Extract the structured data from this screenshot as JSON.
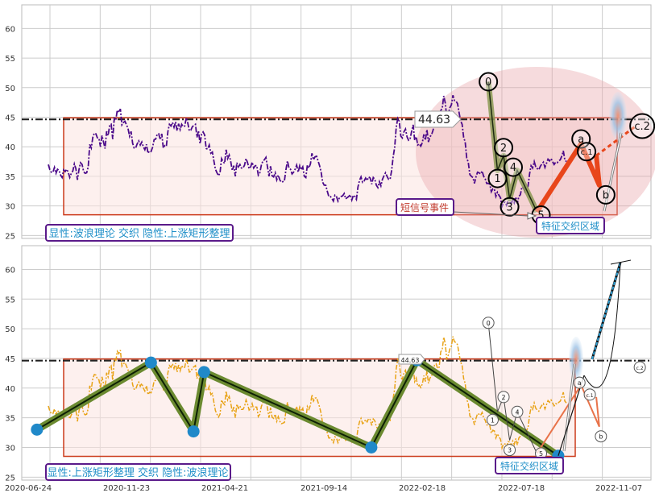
{
  "chart_data": [
    {
      "type": "line",
      "panel": "top",
      "ylim": [
        24.5,
        64
      ],
      "yticks": [
        "25",
        "30",
        "35",
        "40",
        "45",
        "50",
        "55",
        "60"
      ],
      "grid": true,
      "series": [
        {
          "values": [
            37.0,
            36.1,
            35.7,
            35.7,
            36.5,
            35.5,
            36.2,
            36.0,
            35.2,
            34.8,
            36.1,
            35.8,
            36.2,
            35.7,
            34.8,
            35.5,
            35.9,
            37.1,
            36.3,
            34.4,
            36.1,
            37.3,
            37.0,
            35.8,
            35.5,
            35.6,
            36.6,
            40.4,
            39.8,
            41.6,
            42.3,
            42.2,
            41.5,
            41.4,
            40.0,
            41.9,
            40.8,
            39.7,
            42.6,
            41.9,
            43.6,
            43.8,
            41.3,
            44.8,
            44.5,
            46.2,
            45.8,
            46.4,
            43.7,
            44.1,
            44.3,
            43.7,
            43.1,
            41.8,
            42.6,
            40.6,
            39.8,
            39.8,
            40.5,
            41.0,
            40.3,
            40.8,
            40.0,
            39.5,
            40.4,
            38.9,
            39.3,
            39.2,
            39.9,
            41.2,
            41.3,
            42.1,
            42.2,
            41.2,
            42.2,
            39.8,
            40.2,
            40.1,
            42.6,
            43.8,
            43.5,
            44.1,
            43.3,
            44.2,
            42.7,
            43.9,
            42.9,
            43.8,
            43.4,
            43.5,
            44.9,
            44.0,
            42.7,
            42.8,
            43.4,
            43.6,
            43.8,
            41.6,
            42.7,
            40.5,
            42.1,
            42.5,
            42.0,
            39.7,
            39.6,
            40.3,
            38.9,
            39.1,
            37.6,
            36.2,
            35.6,
            35.1,
            35.6,
            38.0,
            37.5,
            37.2,
            39.5,
            38.0,
            38.6,
            37.5,
            36.0,
            36.8,
            35.0,
            37.3,
            36.6,
            37.0,
            36.4,
            36.4,
            36.9,
            38.0,
            37.3,
            36.3,
            36.6,
            37.4,
            36.4,
            36.8,
            36.8,
            35.2,
            35.6,
            36.9,
            37.6,
            37.8,
            38.2,
            36.6,
            35.0,
            36.7,
            35.1,
            34.9,
            35.6,
            34.4,
            35.2,
            34.4,
            34.0,
            34.1,
            34.2,
            36.1,
            37.6,
            36.4,
            36.2,
            35.4,
            35.7,
            36.2,
            36.9,
            35.7,
            36.8,
            36.1,
            36.6,
            35.0,
            34.8,
            36.9,
            36.4,
            37.1,
            38.9,
            37.8,
            38.3,
            38.4,
            37.6,
            36.8,
            35.7,
            34.0,
            33.5,
            33.5,
            32.5,
            31.6,
            31.6,
            31.3,
            30.8,
            31.8,
            31.6,
            30.8,
            31.4,
            31.6,
            31.7,
            32.1,
            31.2,
            31.4,
            31.6,
            31.9,
            31.0,
            31.8,
            31.6,
            31.1,
            33.2,
            34.3,
            34.9,
            34.0,
            34.2,
            34.7,
            34.3,
            34.9,
            34.7,
            33.7,
            34.8,
            34.5,
            33.5,
            33.1,
            34.1,
            33.4,
            34.5,
            35.1,
            35.6,
            35.0,
            34.5,
            34.5,
            36.0,
            38.3,
            39.9,
            43.3,
            44.8,
            44.3,
            41.8,
            41.5,
            42.5,
            43.0,
            41.7,
            41.1,
            41.3,
            42.6,
            43.7,
            41.1,
            41.7,
            40.3,
            40.5,
            40.1,
            40.7,
            42.1,
            41.1,
            42.9,
            40.8,
            41.7,
            42.0,
            42.8,
            43.9,
            44.1,
            43.3,
            43.5,
            46.1,
            46.5,
            48.6,
            47.4,
            44.8,
            45.6,
            46.6,
            47.1,
            48.7,
            47.8,
            47.7,
            47.3,
            45.8,
            44.4,
            43.8,
            41.6,
            40.8,
            38.1,
            37.4,
            35.3,
            35.0,
            34.8,
            33.8,
            34.9,
            35.7,
            35.6,
            35.4,
            35.9,
            35.0,
            34.6,
            33.8,
            33.8,
            33.7,
            32.4,
            32.9,
            32.8,
            31.6,
            32.3,
            31.8,
            31.4,
            29.9,
            30.6,
            30.6,
            30.1,
            31.0,
            30.9,
            30.3,
            31.1,
            30.5,
            31.5,
            30.4,
            31.6,
            31.9,
            33.2,
            33.1,
            32.4,
            32.9,
            33.3,
            35.4,
            36.8,
            36.4,
            37.5,
            36.6,
            36.3,
            36.1,
            36.7,
            37.1,
            37.4,
            36.5,
            37.2,
            37.9,
            37.6,
            38.0,
            37.5,
            37.0,
            37.4,
            37.3,
            37.6,
            37.8,
            38.4,
            39.3,
            37.8,
            37.5
          ]
        }
      ],
      "support": 28.5,
      "resistance": 44.63,
      "price_label": "44.63",
      "wave_points": [
        {
          "label": "0",
          "x": 307.0,
          "y": 51.0
        },
        {
          "label": "1",
          "x": 313.0,
          "y": 36.0
        },
        {
          "label": "2",
          "x": 317.0,
          "y": 38.5
        },
        {
          "label": "3",
          "x": 321.0,
          "y": 31.2
        },
        {
          "label": "4",
          "x": 326.0,
          "y": 36.0
        },
        {
          "label": "5",
          "x": 339.0,
          "y": 29.0
        },
        {
          "label": "a",
          "x": 368.0,
          "y": 40.5
        },
        {
          "label": "c.1",
          "x": 378.0,
          "y": 38.5
        },
        {
          "label": "b",
          "x": 380.0,
          "y": 33.5
        },
        {
          "label": "c.2",
          "x": 404.0,
          "y": 43.5
        }
      ],
      "annotations": {
        "signal": "短信号事件",
        "zone": "特征交织区域",
        "legend": "显性:波浪理论 交织 隐性:上涨矩形整理"
      }
    },
    {
      "type": "line",
      "panel": "bottom",
      "ylim": [
        24.5,
        64
      ],
      "yticks": [
        "25",
        "30",
        "35",
        "40",
        "45",
        "50",
        "55",
        "60"
      ],
      "grid": true,
      "xticks": [
        "2020-06-24",
        "2020-11-23",
        "2021-04-21",
        "2021-09-14",
        "2022-02-18",
        "2022-07-18",
        "2022-11-07"
      ],
      "rect_pivots": [
        {
          "x": 10.0,
          "y": 33.0
        },
        {
          "x": 85.0,
          "y": 44.3
        },
        {
          "x": 113.0,
          "y": 32.7
        },
        {
          "x": 120.0,
          "y": 42.7
        },
        {
          "x": 230.0,
          "y": 30.0
        },
        {
          "x": 260.0,
          "y": 44.7
        },
        {
          "x": 353.0,
          "y": 28.6
        }
      ],
      "target": {
        "x": 405.0,
        "y": 61.0
      },
      "annotations": {
        "price_label": "44.63",
        "zone": "特征交织区域",
        "legend": "显性:上涨矩形整理 交织 隐性:波浪理论"
      }
    }
  ]
}
